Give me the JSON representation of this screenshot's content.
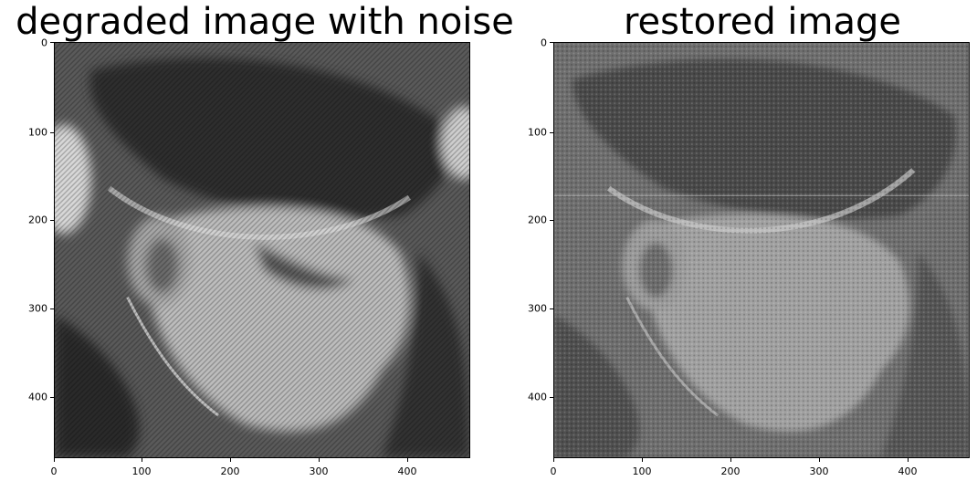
{
  "left": {
    "title": "degraded image with noise",
    "x_ticks": [
      "0",
      "100",
      "200",
      "300",
      "400"
    ],
    "y_ticks": [
      "0",
      "100",
      "200",
      "300",
      "400"
    ]
  },
  "right": {
    "title": "restored image",
    "x_ticks": [
      "0",
      "100",
      "200",
      "300",
      "400"
    ],
    "y_ticks": [
      "0",
      "100",
      "200",
      "300",
      "400"
    ]
  }
}
